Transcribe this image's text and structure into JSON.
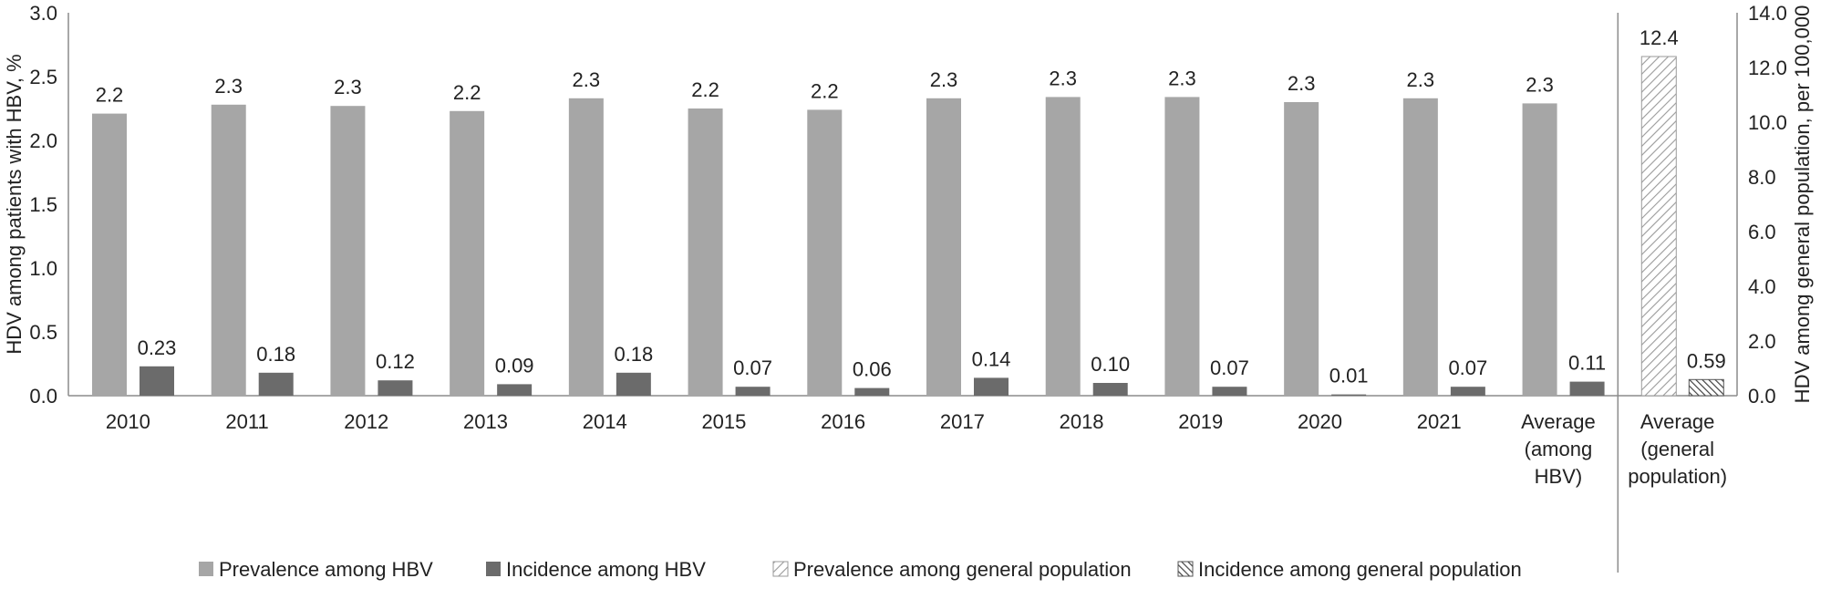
{
  "chart_data": {
    "type": "bar",
    "categories": [
      "2010",
      "2011",
      "2012",
      "2013",
      "2014",
      "2015",
      "2016",
      "2017",
      "2018",
      "2019",
      "2020",
      "2021",
      "Average (among HBV)",
      "Average (general population)"
    ],
    "category_lines": [
      [
        "2010"
      ],
      [
        "2011"
      ],
      [
        "2012"
      ],
      [
        "2013"
      ],
      [
        "2014"
      ],
      [
        "2015"
      ],
      [
        "2016"
      ],
      [
        "2017"
      ],
      [
        "2018"
      ],
      [
        "2019"
      ],
      [
        "2020"
      ],
      [
        "2021"
      ],
      [
        "Average",
        "(among",
        "HBV)"
      ],
      [
        "Average",
        "(general",
        "population)"
      ]
    ],
    "series": [
      {
        "name": "Prevalence among HBV",
        "axis": "left",
        "color": "#a6a6a6",
        "fill": "solid",
        "values": [
          2.21,
          2.28,
          2.27,
          2.23,
          2.33,
          2.25,
          2.24,
          2.33,
          2.34,
          2.34,
          2.3,
          2.33,
          2.29,
          null
        ],
        "labels": [
          "2.2",
          "2.3",
          "2.3",
          "2.2",
          "2.3",
          "2.2",
          "2.2",
          "2.3",
          "2.3",
          "2.3",
          "2.3",
          "2.3",
          "2.3",
          ""
        ]
      },
      {
        "name": "Incidence among HBV",
        "axis": "left",
        "color": "#6b6b6b",
        "fill": "solid",
        "values": [
          0.23,
          0.18,
          0.12,
          0.09,
          0.18,
          0.07,
          0.06,
          0.14,
          0.1,
          0.07,
          0.01,
          0.07,
          0.11,
          null
        ],
        "labels": [
          "0.23",
          "0.18",
          "0.12",
          "0.09",
          "0.18",
          "0.07",
          "0.06",
          "0.14",
          "0.10",
          "0.07",
          "0.01",
          "0.07",
          "0.11",
          ""
        ]
      },
      {
        "name": "Prevalence among general population",
        "axis": "right",
        "color": "#a6a6a6",
        "fill": "light-hatch",
        "values": [
          null,
          null,
          null,
          null,
          null,
          null,
          null,
          null,
          null,
          null,
          null,
          null,
          null,
          12.4
        ],
        "labels": [
          "",
          "",
          "",
          "",
          "",
          "",
          "",
          "",
          "",
          "",
          "",
          "",
          "",
          "12.4"
        ]
      },
      {
        "name": "Incidence among general population",
        "axis": "right",
        "color": "#6b6b6b",
        "fill": "dark-hatch",
        "values": [
          null,
          null,
          null,
          null,
          null,
          null,
          null,
          null,
          null,
          null,
          null,
          null,
          null,
          0.59
        ],
        "labels": [
          "",
          "",
          "",
          "",
          "",
          "",
          "",
          "",
          "",
          "",
          "",
          "",
          "",
          "0.59"
        ]
      }
    ],
    "y_left": {
      "label": "HDV among patients with HBV, %",
      "ylim": [
        0,
        3.0
      ],
      "ticks": [
        "0.0",
        "0.5",
        "1.0",
        "1.5",
        "2.0",
        "2.5",
        "3.0"
      ]
    },
    "y_right": {
      "label": "HDV among general population, per 100,000",
      "ylim": [
        0,
        14.0
      ],
      "ticks": [
        "0.0",
        "2.0",
        "4.0",
        "6.0",
        "8.0",
        "10.0",
        "12.0",
        "14.0"
      ]
    },
    "legend": {
      "position": "bottom"
    },
    "grid": false
  }
}
